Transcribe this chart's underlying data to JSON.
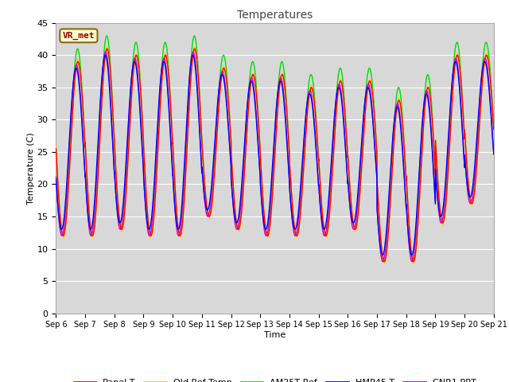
{
  "title": "Temperatures",
  "xlabel": "Time",
  "ylabel": "Temperature (C)",
  "ylim": [
    0,
    45
  ],
  "yticks": [
    0,
    5,
    10,
    15,
    20,
    25,
    30,
    35,
    40,
    45
  ],
  "n_days": 15,
  "annotation": "VR_met",
  "series_colors": {
    "Panel T": "#ff0000",
    "Old Ref Temp": "#ffcc00",
    "AM25T Ref": "#00dd00",
    "HMP45 T": "#0000ff",
    "CNR1 PRT": "#cc00cc"
  },
  "background_color": "#ffffff",
  "plot_bg_upper": "#d8d8d8",
  "plot_bg_lower": "#d8d8d8",
  "grid_color": "#ffffff",
  "tick_labels": [
    "Sep 6",
    "Sep 7",
    "Sep 8",
    "Sep 9",
    "Sep 10",
    "Sep 11",
    "Sep 12",
    "Sep 13",
    "Sep 14",
    "Sep 15",
    "Sep 16",
    "Sep 17",
    "Sep 18",
    "Sep 19",
    "Sep 20",
    "Sep 21"
  ],
  "day_mins": [
    12,
    12,
    13,
    12,
    12,
    15,
    13,
    12,
    12,
    12,
    13,
    8,
    8,
    14,
    17
  ],
  "day_maxs": [
    39,
    41,
    40,
    40,
    41,
    38,
    37,
    37,
    35,
    36,
    36,
    33,
    35,
    40,
    40
  ]
}
